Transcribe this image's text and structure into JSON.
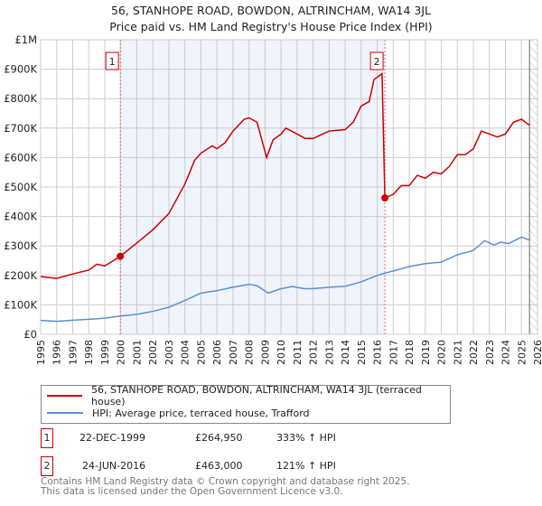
{
  "title": "56, STANHOPE ROAD, BOWDON, ALTRINCHAM, WA14 3JL",
  "subtitle": "Price paid vs. HM Land Registry's House Price Index (HPI)",
  "chart_data": {
    "type": "line",
    "xlim": [
      1995,
      2026
    ],
    "ylim": [
      0,
      1000000
    ],
    "y_ticks": [
      {
        "v": 0,
        "label": "£0"
      },
      {
        "v": 100000,
        "label": "£100K"
      },
      {
        "v": 200000,
        "label": "£200K"
      },
      {
        "v": 300000,
        "label": "£300K"
      },
      {
        "v": 400000,
        "label": "£400K"
      },
      {
        "v": 500000,
        "label": "£500K"
      },
      {
        "v": 600000,
        "label": "£600K"
      },
      {
        "v": 700000,
        "label": "£700K"
      },
      {
        "v": 800000,
        "label": "£800K"
      },
      {
        "v": 900000,
        "label": "£900K"
      },
      {
        "v": 1000000,
        "label": "£1M"
      }
    ],
    "x_ticks": [
      "1995",
      "1996",
      "1997",
      "1998",
      "1999",
      "2000",
      "2001",
      "2002",
      "2003",
      "2004",
      "2005",
      "2006",
      "2007",
      "2008",
      "2009",
      "2010",
      "2011",
      "2012",
      "2013",
      "2014",
      "2015",
      "2016",
      "2017",
      "2018",
      "2019",
      "2020",
      "2021",
      "2022",
      "2023",
      "2024",
      "2025",
      "2026"
    ],
    "grid": true,
    "shaded_range": [
      1999.97,
      2016.48
    ],
    "forecast_hatch_from": 2025.5,
    "series": [
      {
        "name": "56, STANHOPE ROAD, BOWDON, ALTRINCHAM, WA14 3JL (terraced house)",
        "color": "#cc0000",
        "points": [
          [
            1995,
            196000
          ],
          [
            1996,
            190000
          ],
          [
            1997,
            205000
          ],
          [
            1998,
            218000
          ],
          [
            1998.5,
            238000
          ],
          [
            1999,
            232000
          ],
          [
            1999.97,
            264950
          ],
          [
            2001,
            310000
          ],
          [
            2002,
            355000
          ],
          [
            2003,
            410000
          ],
          [
            2004,
            510000
          ],
          [
            2004.6,
            590000
          ],
          [
            2005,
            615000
          ],
          [
            2005.7,
            640000
          ],
          [
            2006,
            630000
          ],
          [
            2006.5,
            650000
          ],
          [
            2007,
            690000
          ],
          [
            2007.7,
            730000
          ],
          [
            2008,
            735000
          ],
          [
            2008.5,
            720000
          ],
          [
            2009.1,
            600000
          ],
          [
            2009.5,
            660000
          ],
          [
            2010,
            680000
          ],
          [
            2010.3,
            700000
          ],
          [
            2011,
            680000
          ],
          [
            2011.5,
            665000
          ],
          [
            2012,
            665000
          ],
          [
            2013,
            690000
          ],
          [
            2014,
            695000
          ],
          [
            2014.5,
            720000
          ],
          [
            2015,
            775000
          ],
          [
            2015.5,
            790000
          ],
          [
            2015.8,
            865000
          ],
          [
            2016.3,
            885000
          ],
          [
            2016.48,
            463000
          ],
          [
            2017,
            475000
          ],
          [
            2017.5,
            505000
          ],
          [
            2018,
            505000
          ],
          [
            2018.5,
            540000
          ],
          [
            2019,
            530000
          ],
          [
            2019.5,
            550000
          ],
          [
            2020,
            545000
          ],
          [
            2020.5,
            570000
          ],
          [
            2021,
            610000
          ],
          [
            2021.5,
            610000
          ],
          [
            2022,
            630000
          ],
          [
            2022.5,
            690000
          ],
          [
            2023,
            680000
          ],
          [
            2023.5,
            670000
          ],
          [
            2024,
            680000
          ],
          [
            2024.5,
            720000
          ],
          [
            2025,
            730000
          ],
          [
            2025.5,
            710000
          ]
        ]
      },
      {
        "name": "HPI: Average price, terraced house, Trafford",
        "color": "#5b8fd4",
        "points": [
          [
            1995,
            47000
          ],
          [
            1996,
            44000
          ],
          [
            1997,
            48000
          ],
          [
            1998,
            51000
          ],
          [
            1999,
            55000
          ],
          [
            2000,
            62000
          ],
          [
            2001,
            68000
          ],
          [
            2002,
            78000
          ],
          [
            2003,
            92000
          ],
          [
            2004,
            115000
          ],
          [
            2005,
            140000
          ],
          [
            2006,
            148000
          ],
          [
            2007,
            160000
          ],
          [
            2008,
            170000
          ],
          [
            2008.5,
            165000
          ],
          [
            2009.2,
            140000
          ],
          [
            2010,
            155000
          ],
          [
            2010.7,
            162000
          ],
          [
            2011.5,
            155000
          ],
          [
            2012,
            155000
          ],
          [
            2013,
            160000
          ],
          [
            2014,
            163000
          ],
          [
            2015,
            178000
          ],
          [
            2016,
            200000
          ],
          [
            2016.5,
            208000
          ],
          [
            2017,
            215000
          ],
          [
            2018,
            230000
          ],
          [
            2019,
            240000
          ],
          [
            2020,
            245000
          ],
          [
            2021,
            270000
          ],
          [
            2022,
            285000
          ],
          [
            2022.7,
            318000
          ],
          [
            2023.3,
            303000
          ],
          [
            2023.7,
            313000
          ],
          [
            2024.2,
            308000
          ],
          [
            2025,
            330000
          ],
          [
            2025.5,
            320000
          ]
        ]
      }
    ],
    "sales": [
      {
        "label": "1",
        "x": 1999.97,
        "y": 264950
      },
      {
        "label": "2",
        "x": 2016.48,
        "y": 463000
      }
    ]
  },
  "legend": {
    "property": "56, STANHOPE ROAD, BOWDON, ALTRINCHAM, WA14 3JL (terraced house)",
    "hpi": "HPI: Average price, terraced house, Trafford"
  },
  "transactions": [
    {
      "num": "1",
      "date": "22-DEC-1999",
      "price": "£264,950",
      "hpi": "333% ↑ HPI"
    },
    {
      "num": "2",
      "date": "24-JUN-2016",
      "price": "£463,000",
      "hpi": "121% ↑ HPI"
    }
  ],
  "footer": {
    "line1": "Contains HM Land Registry data © Crown copyright and database right 2025.",
    "line2": "This data is licensed under the Open Government Licence v3.0."
  }
}
